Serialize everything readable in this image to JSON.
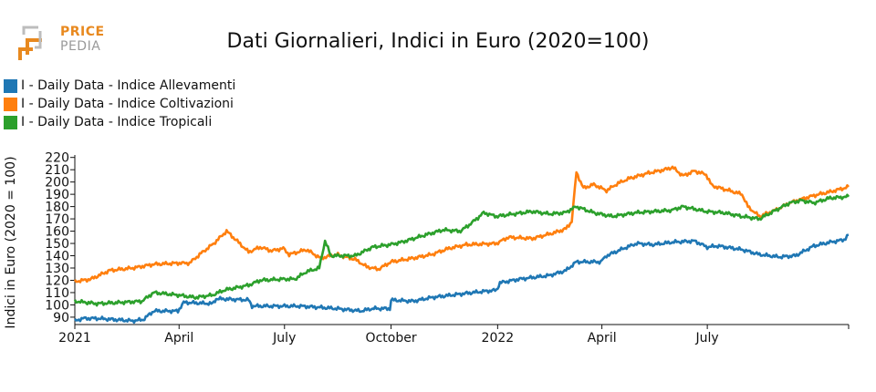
{
  "logo": {
    "top": "PRICE",
    "bottom": "PEDIA",
    "accent": "#e8891f",
    "grey": "#9a9a9a"
  },
  "chart_data": {
    "type": "line",
    "title": "Dati Giornalieri, Indici in Euro (2020=100)",
    "ylabel": "Indici in Euro (2020 = 100)",
    "xlabel": "",
    "ylim": [
      84,
      222
    ],
    "yticks": [
      90,
      100,
      110,
      120,
      130,
      140,
      150,
      160,
      170,
      180,
      190,
      200,
      210,
      220
    ],
    "xlim": [
      "2021-01-01",
      "2022-10-31"
    ],
    "xticks": [
      {
        "date": "2021-01-01",
        "label": "2021"
      },
      {
        "date": "2021-04-01",
        "label": "April"
      },
      {
        "date": "2021-07-01",
        "label": "July"
      },
      {
        "date": "2021-10-01",
        "label": "October"
      },
      {
        "date": "2022-01-01",
        "label": "2022"
      },
      {
        "date": "2022-04-01",
        "label": "April"
      },
      {
        "date": "2022-07-01",
        "label": "July"
      }
    ],
    "legend_position": "top-left",
    "grid": false,
    "series": [
      {
        "name": "I - Daily Data - Indice Allevamenti",
        "color": "#1f77b4",
        "points": [
          [
            "2021-01-01",
            87
          ],
          [
            "2021-01-08",
            89
          ],
          [
            "2021-01-20",
            89
          ],
          [
            "2021-02-05",
            88
          ],
          [
            "2021-02-20",
            87
          ],
          [
            "2021-03-01",
            88
          ],
          [
            "2021-03-10",
            95
          ],
          [
            "2021-03-31",
            95
          ],
          [
            "2021-04-05",
            102
          ],
          [
            "2021-04-30",
            101
          ],
          [
            "2021-05-03",
            105
          ],
          [
            "2021-05-31",
            104
          ],
          [
            "2021-06-03",
            99
          ],
          [
            "2021-07-15",
            99
          ],
          [
            "2021-08-15",
            97
          ],
          [
            "2021-09-05",
            95
          ],
          [
            "2021-09-15",
            97
          ],
          [
            "2021-09-30",
            97
          ],
          [
            "2021-10-01",
            104
          ],
          [
            "2021-10-20",
            103
          ],
          [
            "2021-11-05",
            106
          ],
          [
            "2021-12-10",
            110
          ],
          [
            "2021-12-31",
            112
          ],
          [
            "2022-01-03",
            118
          ],
          [
            "2022-01-20",
            121
          ],
          [
            "2022-02-15",
            124
          ],
          [
            "2022-03-01",
            128
          ],
          [
            "2022-03-10",
            135
          ],
          [
            "2022-03-31",
            135
          ],
          [
            "2022-04-05",
            140
          ],
          [
            "2022-04-20",
            146
          ],
          [
            "2022-05-01",
            150
          ],
          [
            "2022-05-15",
            149
          ],
          [
            "2022-06-01",
            151
          ],
          [
            "2022-06-20",
            152
          ],
          [
            "2022-07-01",
            147
          ],
          [
            "2022-07-10",
            148
          ],
          [
            "2022-07-31",
            145
          ],
          [
            "2022-08-15",
            141
          ],
          [
            "2022-09-01",
            139
          ],
          [
            "2022-09-15",
            140
          ],
          [
            "2022-10-01",
            148
          ],
          [
            "2022-10-15",
            151
          ],
          [
            "2022-10-27",
            153
          ],
          [
            "2022-10-31",
            157
          ]
        ]
      },
      {
        "name": "I - Daily Data - Indice Coltivazioni",
        "color": "#ff7f0e",
        "points": [
          [
            "2021-01-01",
            119
          ],
          [
            "2021-01-15",
            121
          ],
          [
            "2021-01-31",
            128
          ],
          [
            "2021-02-20",
            130
          ],
          [
            "2021-03-10",
            133
          ],
          [
            "2021-03-31",
            134
          ],
          [
            "2021-04-10",
            134
          ],
          [
            "2021-04-20",
            142
          ],
          [
            "2021-05-01",
            150
          ],
          [
            "2021-05-12",
            160
          ],
          [
            "2021-05-20",
            153
          ],
          [
            "2021-05-31",
            143
          ],
          [
            "2021-06-10",
            147
          ],
          [
            "2021-06-20",
            144
          ],
          [
            "2021-06-30",
            146
          ],
          [
            "2021-07-05",
            141
          ],
          [
            "2021-07-20",
            145
          ],
          [
            "2021-08-01",
            138
          ],
          [
            "2021-08-15",
            141
          ],
          [
            "2021-08-31",
            137
          ],
          [
            "2021-09-10",
            131
          ],
          [
            "2021-09-20",
            129
          ],
          [
            "2021-10-01",
            135
          ],
          [
            "2021-10-20",
            138
          ],
          [
            "2021-11-05",
            141
          ],
          [
            "2021-11-20",
            146
          ],
          [
            "2021-12-05",
            149
          ],
          [
            "2021-12-31",
            150
          ],
          [
            "2022-01-10",
            155
          ],
          [
            "2022-01-31",
            154
          ],
          [
            "2022-02-20",
            159
          ],
          [
            "2022-03-01",
            162
          ],
          [
            "2022-03-06",
            168
          ],
          [
            "2022-03-10",
            208
          ],
          [
            "2022-03-16",
            195
          ],
          [
            "2022-03-25",
            198
          ],
          [
            "2022-04-05",
            193
          ],
          [
            "2022-04-15",
            199
          ],
          [
            "2022-04-25",
            203
          ],
          [
            "2022-05-10",
            207
          ],
          [
            "2022-05-25",
            210
          ],
          [
            "2022-06-01",
            212
          ],
          [
            "2022-06-10",
            205
          ],
          [
            "2022-06-20",
            209
          ],
          [
            "2022-06-30",
            206
          ],
          [
            "2022-07-05",
            197
          ],
          [
            "2022-07-20",
            193
          ],
          [
            "2022-07-31",
            190
          ],
          [
            "2022-08-05",
            180
          ],
          [
            "2022-08-15",
            172
          ],
          [
            "2022-08-31",
            178
          ],
          [
            "2022-09-10",
            183
          ],
          [
            "2022-09-20",
            186
          ],
          [
            "2022-10-01",
            189
          ],
          [
            "2022-10-15",
            192
          ],
          [
            "2022-10-31",
            196
          ]
        ]
      },
      {
        "name": "I - Daily Data - Indice Tropicali",
        "color": "#2ca02c",
        "points": [
          [
            "2021-01-01",
            103
          ],
          [
            "2021-01-20",
            101
          ],
          [
            "2021-02-10",
            102
          ],
          [
            "2021-02-28",
            103
          ],
          [
            "2021-03-10",
            110
          ],
          [
            "2021-03-31",
            108
          ],
          [
            "2021-04-15",
            106
          ],
          [
            "2021-04-30",
            108
          ],
          [
            "2021-05-10",
            112
          ],
          [
            "2021-05-31",
            116
          ],
          [
            "2021-06-10",
            120
          ],
          [
            "2021-06-30",
            121
          ],
          [
            "2021-07-10",
            121
          ],
          [
            "2021-07-20",
            127
          ],
          [
            "2021-07-31",
            130
          ],
          [
            "2021-08-05",
            152
          ],
          [
            "2021-08-10",
            140
          ],
          [
            "2021-08-31",
            140
          ],
          [
            "2021-09-15",
            147
          ],
          [
            "2021-09-30",
            149
          ],
          [
            "2021-10-10",
            151
          ],
          [
            "2021-10-31",
            157
          ],
          [
            "2021-11-15",
            161
          ],
          [
            "2021-11-30",
            160
          ],
          [
            "2021-12-10",
            167
          ],
          [
            "2021-12-20",
            175
          ],
          [
            "2021-12-31",
            172
          ],
          [
            "2022-01-15",
            174
          ],
          [
            "2022-01-31",
            176
          ],
          [
            "2022-02-15",
            174
          ],
          [
            "2022-02-28",
            175
          ],
          [
            "2022-03-10",
            180
          ],
          [
            "2022-03-25",
            175
          ],
          [
            "2022-04-10",
            172
          ],
          [
            "2022-04-30",
            175
          ],
          [
            "2022-05-15",
            176
          ],
          [
            "2022-05-31",
            177
          ],
          [
            "2022-06-10",
            180
          ],
          [
            "2022-06-30",
            176
          ],
          [
            "2022-07-15",
            175
          ],
          [
            "2022-07-31",
            172
          ],
          [
            "2022-08-15",
            170
          ],
          [
            "2022-08-31",
            178
          ],
          [
            "2022-09-10",
            183
          ],
          [
            "2022-09-20",
            185
          ],
          [
            "2022-10-01",
            183
          ],
          [
            "2022-10-15",
            187
          ],
          [
            "2022-10-31",
            188
          ]
        ]
      }
    ]
  }
}
